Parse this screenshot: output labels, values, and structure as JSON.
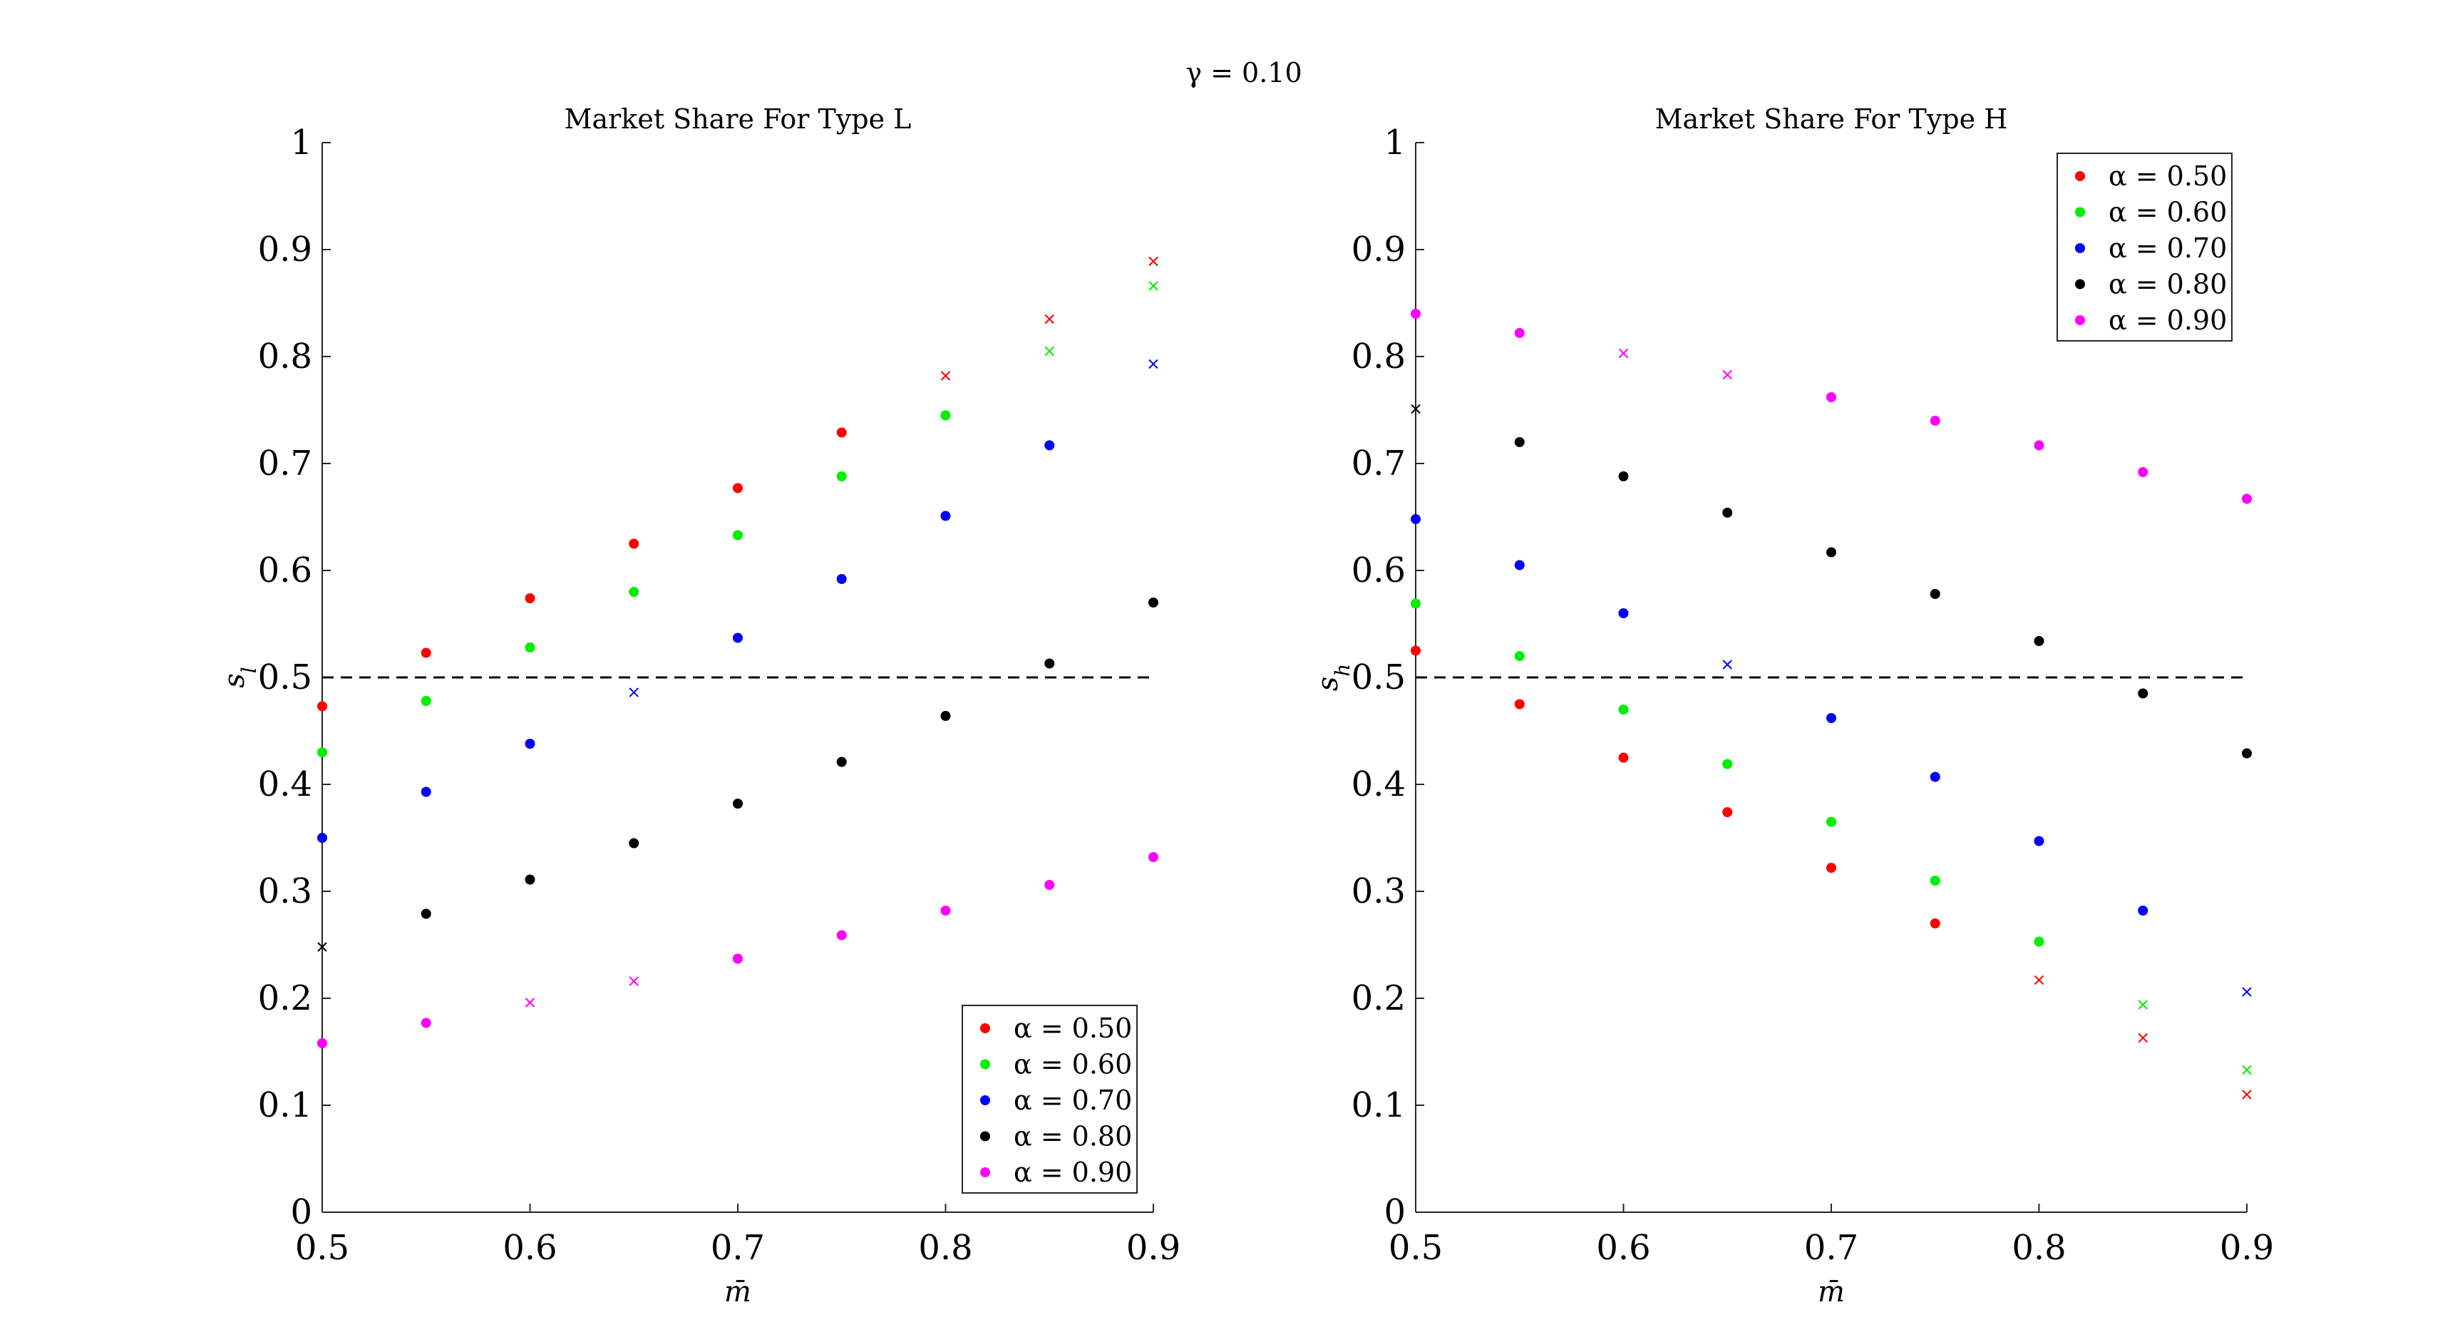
{
  "figure_title": "γ = 0.10",
  "legend_labels": [
    "α = 0.50",
    "α = 0.60",
    "α = 0.70",
    "α = 0.80",
    "α = 0.90"
  ],
  "colors": [
    "#ff0000",
    "#00ee00",
    "#0000ff",
    "#000000",
    "#ff00ff"
  ],
  "chart_data": [
    {
      "type": "scatter",
      "title": "Market Share For Type L",
      "xlabel": "m̄",
      "ylabel": "s_l",
      "xlim": [
        0.5,
        0.9
      ],
      "ylim": [
        0,
        1
      ],
      "xticks": [
        "0.5",
        "0.6",
        "0.7",
        "0.8",
        "0.9"
      ],
      "yticks": [
        "0",
        "0.1",
        "0.2",
        "0.3",
        "0.4",
        "0.5",
        "0.6",
        "0.7",
        "0.8",
        "0.9",
        "1"
      ],
      "reference_line_y": 0.5,
      "legend_position": "bottom-right",
      "x": [
        0.5,
        0.55,
        0.6,
        0.65,
        0.7,
        0.75,
        0.8,
        0.85,
        0.9
      ],
      "series": [
        {
          "name": "α = 0.50",
          "values": [
            0.473,
            0.523,
            0.574,
            0.625,
            0.677,
            0.729,
            0.782,
            0.835,
            0.889
          ],
          "markers": [
            "dot",
            "dot",
            "dot",
            "dot",
            "dot",
            "dot",
            "x",
            "x",
            "x"
          ]
        },
        {
          "name": "α = 0.60",
          "values": [
            0.43,
            0.478,
            0.528,
            0.58,
            0.633,
            0.688,
            0.745,
            0.805,
            0.866
          ],
          "markers": [
            "dot",
            "dot",
            "dot",
            "dot",
            "dot",
            "dot",
            "dot",
            "x",
            "x"
          ]
        },
        {
          "name": "α = 0.70",
          "values": [
            0.35,
            0.393,
            0.438,
            0.486,
            0.537,
            0.592,
            0.651,
            0.717,
            0.793
          ],
          "markers": [
            "dot",
            "dot",
            "dot",
            "x",
            "dot",
            "dot",
            "dot",
            "dot",
            "x"
          ]
        },
        {
          "name": "α = 0.80",
          "values": [
            0.248,
            0.279,
            0.311,
            0.345,
            0.382,
            0.421,
            0.464,
            0.513,
            0.57
          ],
          "markers": [
            "x",
            "dot",
            "dot",
            "dot",
            "dot",
            "dot",
            "dot",
            "dot",
            "dot"
          ]
        },
        {
          "name": "α = 0.90",
          "values": [
            0.158,
            0.177,
            0.196,
            0.216,
            0.237,
            0.259,
            0.282,
            0.306,
            0.332
          ],
          "markers": [
            "dot",
            "dot",
            "x",
            "x",
            "dot",
            "dot",
            "dot",
            "dot",
            "dot"
          ]
        }
      ]
    },
    {
      "type": "scatter",
      "title": "Market Share For Type H",
      "xlabel": "m̄",
      "ylabel": "s_h",
      "xlim": [
        0.5,
        0.9
      ],
      "ylim": [
        0,
        1
      ],
      "xticks": [
        "0.5",
        "0.6",
        "0.7",
        "0.8",
        "0.9"
      ],
      "yticks": [
        "0",
        "0.1",
        "0.2",
        "0.3",
        "0.4",
        "0.5",
        "0.6",
        "0.7",
        "0.8",
        "0.9",
        "1"
      ],
      "reference_line_y": 0.5,
      "legend_position": "top-right",
      "x": [
        0.5,
        0.55,
        0.6,
        0.65,
        0.7,
        0.75,
        0.8,
        0.85,
        0.9
      ],
      "series": [
        {
          "name": "α = 0.50",
          "values": [
            0.525,
            0.475,
            0.425,
            0.374,
            0.322,
            0.27,
            0.217,
            0.163,
            0.11
          ],
          "markers": [
            "dot",
            "dot",
            "dot",
            "dot",
            "dot",
            "dot",
            "x",
            "x",
            "x"
          ]
        },
        {
          "name": "α = 0.60",
          "values": [
            0.569,
            0.52,
            0.47,
            0.419,
            0.365,
            0.31,
            0.253,
            0.194,
            0.133
          ],
          "markers": [
            "dot",
            "dot",
            "dot",
            "dot",
            "dot",
            "dot",
            "dot",
            "x",
            "x"
          ]
        },
        {
          "name": "α = 0.70",
          "values": [
            0.648,
            0.605,
            0.56,
            0.512,
            0.462,
            0.407,
            0.347,
            0.282,
            0.206
          ],
          "markers": [
            "dot",
            "dot",
            "dot",
            "x",
            "dot",
            "dot",
            "dot",
            "dot",
            "x"
          ]
        },
        {
          "name": "α = 0.80",
          "values": [
            0.751,
            0.72,
            0.688,
            0.654,
            0.617,
            0.578,
            0.534,
            0.485,
            0.429
          ],
          "markers": [
            "x",
            "dot",
            "dot",
            "dot",
            "dot",
            "dot",
            "dot",
            "dot",
            "dot"
          ]
        },
        {
          "name": "α = 0.90",
          "values": [
            0.84,
            0.822,
            0.803,
            0.783,
            0.762,
            0.74,
            0.717,
            0.692,
            0.667
          ],
          "markers": [
            "dot",
            "dot",
            "x",
            "x",
            "dot",
            "dot",
            "dot",
            "dot",
            "dot"
          ]
        }
      ]
    }
  ]
}
